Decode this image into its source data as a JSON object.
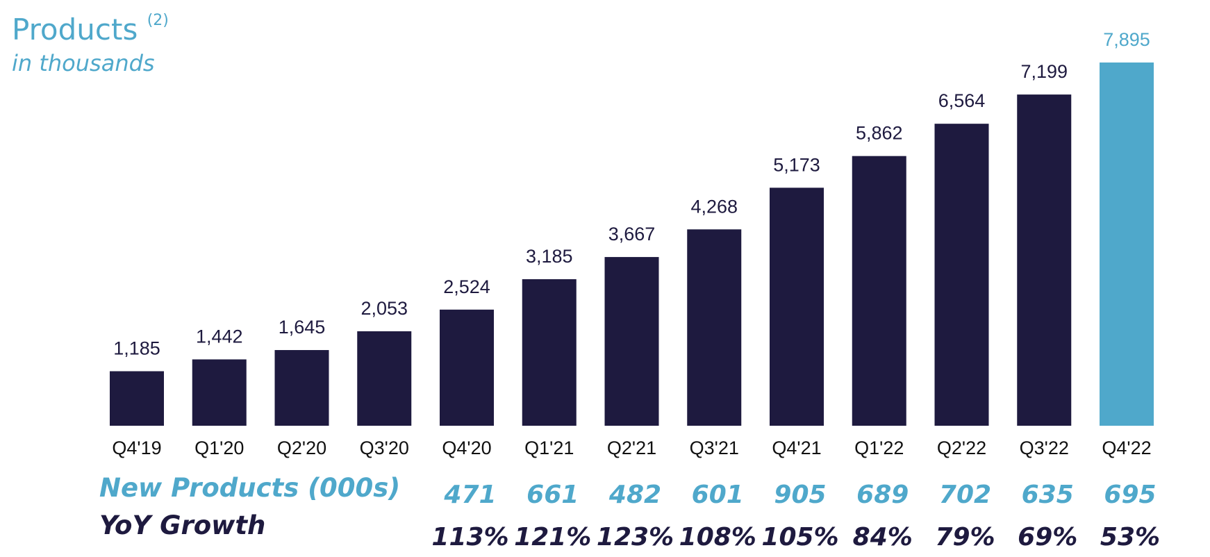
{
  "header": {
    "title": "Products",
    "footnote": "(2)",
    "subtitle": "in thousands"
  },
  "colors": {
    "bar": "#1e1a3f",
    "highlight": "#4fa8cb",
    "accent": "#4fa8cb"
  },
  "chart_data": {
    "type": "bar",
    "title": "Products",
    "subtitle": "in thousands",
    "categories": [
      "Q4'19",
      "Q1'20",
      "Q2'20",
      "Q3'20",
      "Q4'20",
      "Q1'21",
      "Q2'21",
      "Q3'21",
      "Q4'21",
      "Q1'22",
      "Q2'22",
      "Q3'22",
      "Q4'22"
    ],
    "values": [
      1185,
      1442,
      1645,
      2053,
      2524,
      3185,
      3667,
      4268,
      5173,
      5862,
      6564,
      7199,
      7895
    ],
    "value_labels": [
      "1,185",
      "1,442",
      "1,645",
      "2,053",
      "2,524",
      "3,185",
      "3,667",
      "4,268",
      "5,173",
      "5,862",
      "6,564",
      "7,199",
      "7,895"
    ],
    "highlight_index": 12,
    "ylim": [
      0,
      8000
    ],
    "grid": false
  },
  "rows": {
    "new_products": {
      "label": "New Products (000s)",
      "start_index": 4,
      "values": [
        "471",
        "661",
        "482",
        "601",
        "905",
        "689",
        "702",
        "635",
        "695"
      ]
    },
    "yoy_growth": {
      "label": "YoY Growth",
      "start_index": 4,
      "values": [
        "113%",
        "121%",
        "123%",
        "108%",
        "105%",
        "84%",
        "79%",
        "69%",
        "53%"
      ]
    }
  }
}
